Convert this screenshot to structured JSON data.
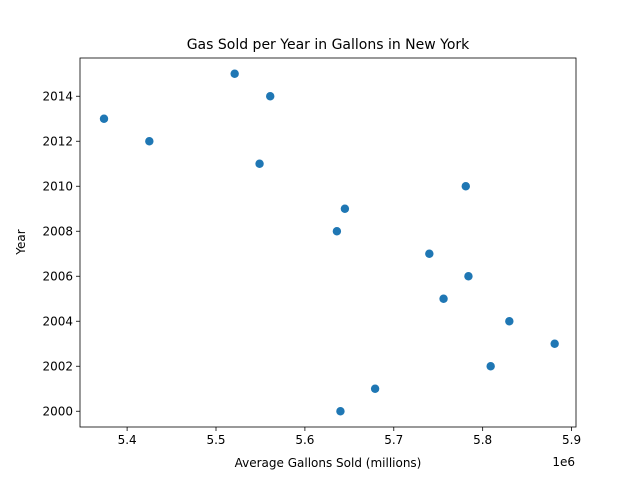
{
  "chart_data": {
    "type": "scatter",
    "title": "Gas Sold per Year in Gallons in New York",
    "xlabel": "Average Gallons Sold (millions)",
    "ylabel": "Year",
    "x_offset_label": "1e6",
    "xlim": [
      5.347,
      5.905
    ],
    "ylim": [
      1999.3,
      2015.7
    ],
    "x_ticks": [
      5.4,
      5.5,
      5.6,
      5.7,
      5.8,
      5.9
    ],
    "y_ticks": [
      2000,
      2002,
      2004,
      2006,
      2008,
      2010,
      2012,
      2014
    ],
    "grid": false,
    "marker_color": "#1f77b4",
    "points": [
      {
        "year": 2000,
        "gallons": 5.64
      },
      {
        "year": 2001,
        "gallons": 5.679
      },
      {
        "year": 2002,
        "gallons": 5.809
      },
      {
        "year": 2003,
        "gallons": 5.881
      },
      {
        "year": 2004,
        "gallons": 5.83
      },
      {
        "year": 2005,
        "gallons": 5.756
      },
      {
        "year": 2006,
        "gallons": 5.784
      },
      {
        "year": 2007,
        "gallons": 5.74
      },
      {
        "year": 2008,
        "gallons": 5.636
      },
      {
        "year": 2009,
        "gallons": 5.645
      },
      {
        "year": 2010,
        "gallons": 5.781
      },
      {
        "year": 2011,
        "gallons": 5.549
      },
      {
        "year": 2012,
        "gallons": 5.425
      },
      {
        "year": 2013,
        "gallons": 5.374
      },
      {
        "year": 2014,
        "gallons": 5.561
      },
      {
        "year": 2015,
        "gallons": 5.521
      }
    ]
  }
}
